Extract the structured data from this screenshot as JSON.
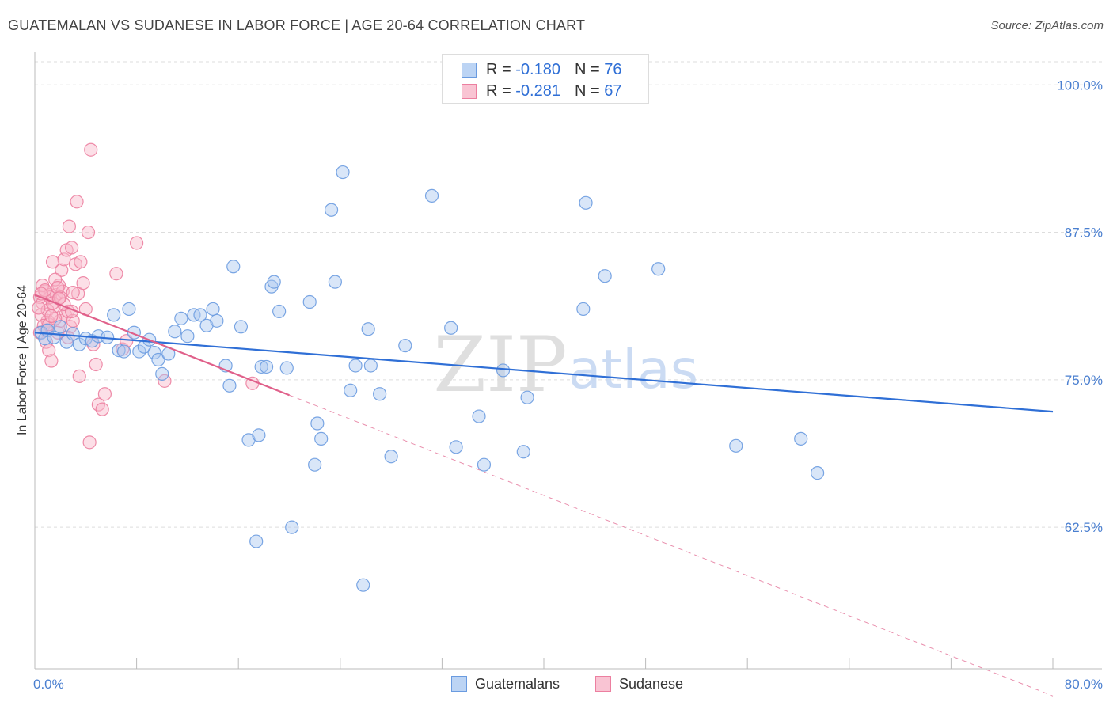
{
  "title": "GUATEMALAN VS SUDANESE IN LABOR FORCE | AGE 20-64 CORRELATION CHART",
  "source": "Source: ZipAtlas.com",
  "watermark": {
    "zip": "ZIP",
    "atlas": "atlas"
  },
  "legend": {
    "rows": [
      {
        "r_label": "R =",
        "r_value": "-0.180",
        "n_label": "N =",
        "n_value": "76"
      },
      {
        "r_label": "R =",
        "r_value": "-0.281",
        "n_label": "N =",
        "n_value": "67"
      }
    ]
  },
  "colors": {
    "guatemalan_fill": "#aac8f0",
    "guatemalan_stroke": "#6a9be0",
    "guatemalan_line": "#2f6fd6",
    "sudanese_fill": "#f8b8ca",
    "sudanese_stroke": "#ec7fa0",
    "sudanese_line": "#e0608a",
    "axis_label": "#4a7fd0",
    "grid": "#dddddd"
  },
  "chart_data": {
    "type": "scatter",
    "title": "GUATEMALAN VS SUDANESE IN LABOR FORCE | AGE 20-64 CORRELATION CHART",
    "xlabel": "",
    "ylabel": "In Labor Force | Age 20-64",
    "xlim": [
      0,
      80
    ],
    "ylim": [
      50.5,
      102.5
    ],
    "x_tick_labels": [
      "0.0%",
      "80.0%"
    ],
    "y_ticks": [
      62.5,
      75.0,
      87.5,
      100.0
    ],
    "y_tick_labels": [
      "62.5%",
      "75.0%",
      "87.5%",
      "100.0%"
    ],
    "grid": true,
    "legend": [
      "Guatemalans",
      "Sudanese"
    ],
    "series": [
      {
        "name": "Guatemalans",
        "trend": {
          "x0": 0,
          "y0": 79.0,
          "x1": 80,
          "y1": 72.3
        },
        "points": [
          [
            0.5,
            79.0
          ],
          [
            0.8,
            78.5
          ],
          [
            1.0,
            79.2
          ],
          [
            1.5,
            78.6
          ],
          [
            2.0,
            79.5
          ],
          [
            2.5,
            78.2
          ],
          [
            3.0,
            78.9
          ],
          [
            3.5,
            78.0
          ],
          [
            4.0,
            78.5
          ],
          [
            4.5,
            78.3
          ],
          [
            5.0,
            78.7
          ],
          [
            5.7,
            78.6
          ],
          [
            6.2,
            80.5
          ],
          [
            6.6,
            77.5
          ],
          [
            7.0,
            77.4
          ],
          [
            7.4,
            81.0
          ],
          [
            7.8,
            79.0
          ],
          [
            8.2,
            77.4
          ],
          [
            8.6,
            77.8
          ],
          [
            9.0,
            78.4
          ],
          [
            9.4,
            77.3
          ],
          [
            9.7,
            76.7
          ],
          [
            10.0,
            75.5
          ],
          [
            11.0,
            79.1
          ],
          [
            11.5,
            80.2
          ],
          [
            12.0,
            78.7
          ],
          [
            12.5,
            80.5
          ],
          [
            13.0,
            80.5
          ],
          [
            13.5,
            79.6
          ],
          [
            14.0,
            81.0
          ],
          [
            14.3,
            80.0
          ],
          [
            15.0,
            76.2
          ],
          [
            15.3,
            74.5
          ],
          [
            15.6,
            84.6
          ],
          [
            16.2,
            79.5
          ],
          [
            16.8,
            69.9
          ],
          [
            17.6,
            70.3
          ],
          [
            17.8,
            76.1
          ],
          [
            18.6,
            82.9
          ],
          [
            18.8,
            83.3
          ],
          [
            19.2,
            80.8
          ],
          [
            19.8,
            76.0
          ],
          [
            20.2,
            62.5
          ],
          [
            21.6,
            81.6
          ],
          [
            22.0,
            67.8
          ],
          [
            22.2,
            71.3
          ],
          [
            22.5,
            70.0
          ],
          [
            23.3,
            89.4
          ],
          [
            23.6,
            83.3
          ],
          [
            24.2,
            92.6
          ],
          [
            24.8,
            74.1
          ],
          [
            25.2,
            76.2
          ],
          [
            26.2,
            79.3
          ],
          [
            26.4,
            76.2
          ],
          [
            27.1,
            73.8
          ],
          [
            28.0,
            68.5
          ],
          [
            29.1,
            77.9
          ],
          [
            31.2,
            90.6
          ],
          [
            33.1,
            69.3
          ],
          [
            32.7,
            79.4
          ],
          [
            34.9,
            71.9
          ],
          [
            35.3,
            67.8
          ],
          [
            36.8,
            75.8
          ],
          [
            38.4,
            68.9
          ],
          [
            38.7,
            73.5
          ],
          [
            43.1,
            81.0
          ],
          [
            43.3,
            90.0
          ],
          [
            44.8,
            83.8
          ],
          [
            49.0,
            84.4
          ],
          [
            55.1,
            69.4
          ],
          [
            60.2,
            70.0
          ],
          [
            61.5,
            67.1
          ],
          [
            17.4,
            61.3
          ],
          [
            25.8,
            57.6
          ],
          [
            18.2,
            76.1
          ],
          [
            10.5,
            77.2
          ]
        ]
      },
      {
        "name": "Sudanese",
        "trend": {
          "x0": 0,
          "y0": 82.2,
          "x1": 20,
          "y1": 73.7,
          "dash_x1": 80,
          "dash_y1": 48.2
        },
        "points": [
          [
            0.4,
            82.0
          ],
          [
            0.6,
            81.5
          ],
          [
            0.8,
            82.5
          ],
          [
            1.0,
            80.0
          ],
          [
            1.2,
            82.2
          ],
          [
            0.5,
            80.5
          ],
          [
            0.7,
            79.6
          ],
          [
            0.9,
            78.2
          ],
          [
            1.1,
            77.5
          ],
          [
            1.3,
            76.6
          ],
          [
            1.5,
            81.2
          ],
          [
            1.7,
            82.2
          ],
          [
            1.9,
            83.0
          ],
          [
            2.1,
            84.3
          ],
          [
            2.3,
            85.2
          ],
          [
            2.5,
            86.0
          ],
          [
            2.7,
            88.0
          ],
          [
            2.9,
            86.2
          ],
          [
            1.4,
            85.0
          ],
          [
            1.6,
            83.5
          ],
          [
            1.8,
            79.0
          ],
          [
            2.0,
            80.0
          ],
          [
            2.2,
            82.5
          ],
          [
            2.4,
            80.5
          ],
          [
            2.6,
            80.8
          ],
          [
            2.8,
            79.5
          ],
          [
            3.0,
            80.0
          ],
          [
            3.2,
            84.8
          ],
          [
            3.4,
            82.3
          ],
          [
            3.6,
            85.0
          ],
          [
            3.8,
            83.2
          ],
          [
            4.0,
            81.0
          ],
          [
            4.2,
            87.5
          ],
          [
            4.4,
            94.5
          ],
          [
            4.6,
            78.0
          ],
          [
            3.3,
            90.1
          ],
          [
            3.5,
            75.3
          ],
          [
            4.8,
            76.3
          ],
          [
            5.0,
            72.9
          ],
          [
            5.3,
            72.5
          ],
          [
            5.5,
            73.8
          ],
          [
            6.4,
            84.0
          ],
          [
            6.9,
            77.6
          ],
          [
            7.2,
            78.3
          ],
          [
            8.0,
            86.6
          ],
          [
            10.2,
            74.9
          ],
          [
            17.1,
            74.7
          ],
          [
            4.3,
            69.7
          ],
          [
            1.0,
            80.9
          ],
          [
            1.2,
            82.0
          ],
          [
            0.3,
            81.1
          ],
          [
            0.6,
            83.0
          ],
          [
            1.4,
            81.5
          ],
          [
            2.0,
            82.0
          ],
          [
            2.6,
            78.6
          ],
          [
            0.9,
            79.2
          ],
          [
            1.8,
            82.8
          ],
          [
            3.0,
            82.4
          ],
          [
            0.4,
            79.0
          ],
          [
            1.1,
            79.7
          ],
          [
            2.3,
            81.4
          ],
          [
            1.6,
            80.2
          ],
          [
            0.8,
            82.6
          ],
          [
            2.9,
            80.8
          ],
          [
            1.9,
            81.9
          ],
          [
            0.5,
            82.3
          ],
          [
            1.3,
            80.4
          ]
        ]
      }
    ]
  }
}
